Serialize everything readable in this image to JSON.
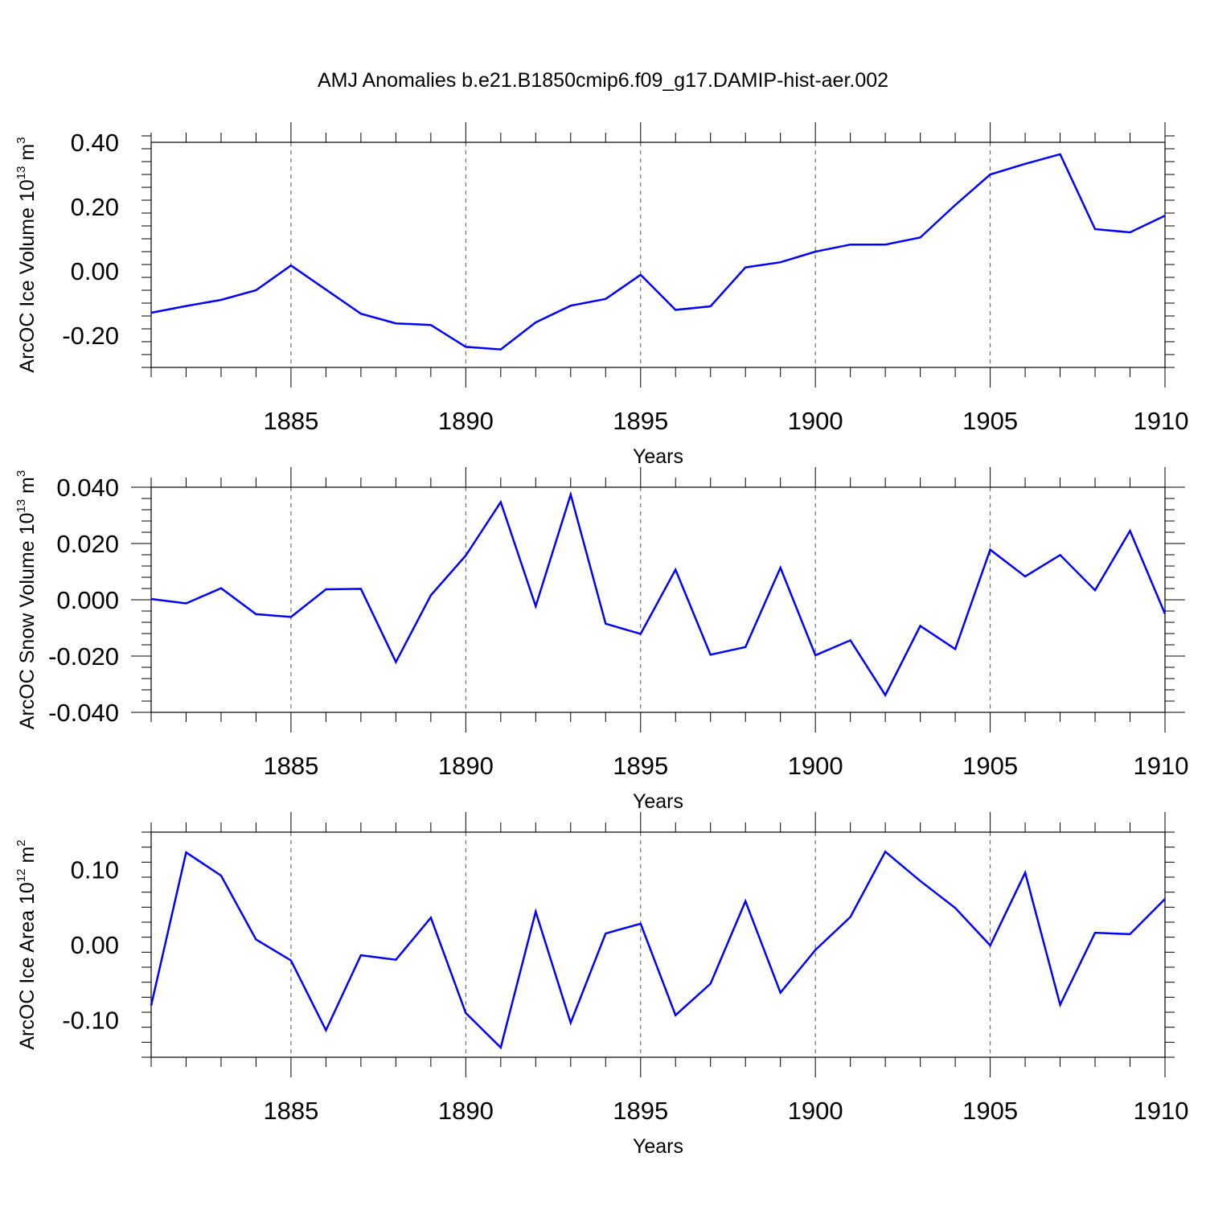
{
  "chart_data": {
    "title": "AMJ Anomalies b.e21.B1850cmip6.f09_g17.DAMIP-hist-aer.002",
    "panels": [
      {
        "type": "line",
        "ylabel_text": "ArcOC Ice Volume 10",
        "ylabel_exp": "13",
        "ylabel_unit": " m",
        "ylabel_unit_exp": "3",
        "xlabel": "Years",
        "xlim": [
          1881,
          1910
        ],
        "ylim": [
          -0.3,
          0.4
        ],
        "yticks": [
          -0.2,
          0.0,
          0.2,
          0.4
        ],
        "ytick_labels": [
          "-0.20",
          "0.00",
          "0.20",
          "0.40"
        ],
        "xticks": [
          1885,
          1890,
          1895,
          1900,
          1905,
          1910
        ],
        "xtick_labels": [
          "1885",
          "1890",
          "1895",
          "1900",
          "1905",
          "1910"
        ],
        "x": [
          1881,
          1882,
          1883,
          1884,
          1885,
          1886,
          1887,
          1888,
          1889,
          1890,
          1891,
          1892,
          1893,
          1894,
          1895,
          1896,
          1897,
          1898,
          1899,
          1900,
          1901,
          1902,
          1903,
          1904,
          1905,
          1906,
          1907,
          1908,
          1909,
          1910
        ],
        "values": [
          -0.13,
          -0.109,
          -0.09,
          -0.06,
          0.017,
          -0.058,
          -0.133,
          -0.163,
          -0.168,
          -0.236,
          -0.244,
          -0.16,
          -0.108,
          -0.087,
          -0.012,
          -0.121,
          -0.11,
          0.011,
          0.027,
          0.06,
          0.082,
          0.082,
          0.104,
          0.205,
          0.3,
          0.333,
          0.363,
          0.13,
          0.12,
          0.172
        ]
      },
      {
        "type": "line",
        "ylabel_text": "ArcOC Snow Volume 10",
        "ylabel_exp": "13",
        "ylabel_unit": " m",
        "ylabel_unit_exp": "3",
        "xlabel": "Years",
        "xlim": [
          1881,
          1910
        ],
        "ylim": [
          -0.04,
          0.04
        ],
        "yticks": [
          -0.04,
          -0.02,
          0.0,
          0.02,
          0.04
        ],
        "ytick_labels": [
          "-0.040",
          "-0.020",
          "0.000",
          "0.020",
          "0.040"
        ],
        "xticks": [
          1885,
          1890,
          1895,
          1900,
          1905,
          1910
        ],
        "xtick_labels": [
          "1885",
          "1890",
          "1895",
          "1900",
          "1905",
          "1910"
        ],
        "x": [
          1881,
          1882,
          1883,
          1884,
          1885,
          1886,
          1887,
          1888,
          1889,
          1890,
          1891,
          1892,
          1893,
          1894,
          1895,
          1896,
          1897,
          1898,
          1899,
          1900,
          1901,
          1902,
          1903,
          1904,
          1905,
          1906,
          1907,
          1908,
          1909,
          1910
        ],
        "values": [
          0.0003,
          -0.0013,
          0.0041,
          -0.0051,
          -0.0061,
          0.0037,
          0.0039,
          -0.0221,
          0.0016,
          0.0157,
          0.0347,
          -0.0023,
          0.0374,
          -0.0085,
          -0.0121,
          0.0107,
          -0.0195,
          -0.0168,
          0.0114,
          -0.0197,
          -0.0144,
          -0.0339,
          -0.0093,
          -0.0175,
          0.0178,
          0.0083,
          0.0159,
          0.0034,
          0.0245,
          -0.005
        ]
      },
      {
        "type": "line",
        "ylabel_text": "ArcOC Ice Area 10",
        "ylabel_exp": "12",
        "ylabel_unit": " m",
        "ylabel_unit_exp": "2",
        "xlabel": "Years",
        "xlim": [
          1881,
          1910
        ],
        "ylim": [
          -0.15,
          0.15
        ],
        "yticks": [
          -0.1,
          0.0,
          0.1
        ],
        "ytick_labels": [
          "-0.10",
          "0.00",
          "0.10"
        ],
        "xticks": [
          1885,
          1890,
          1895,
          1900,
          1905,
          1910
        ],
        "xtick_labels": [
          "1885",
          "1890",
          "1895",
          "1900",
          "1905",
          "1910"
        ],
        "x": [
          1881,
          1882,
          1883,
          1884,
          1885,
          1886,
          1887,
          1888,
          1889,
          1890,
          1891,
          1892,
          1893,
          1894,
          1895,
          1896,
          1897,
          1898,
          1899,
          1900,
          1901,
          1902,
          1903,
          1904,
          1905,
          1906,
          1907,
          1908,
          1909,
          1910
        ],
        "values": [
          -0.081,
          0.123,
          0.092,
          0.007,
          -0.021,
          -0.114,
          -0.014,
          -0.02,
          0.036,
          -0.091,
          -0.137,
          0.044,
          -0.104,
          0.015,
          0.028,
          -0.094,
          -0.052,
          0.058,
          -0.064,
          -0.007,
          0.037,
          0.124,
          0.085,
          0.049,
          -0.001,
          0.096,
          -0.08,
          0.016,
          0.014,
          0.061
        ]
      }
    ]
  }
}
